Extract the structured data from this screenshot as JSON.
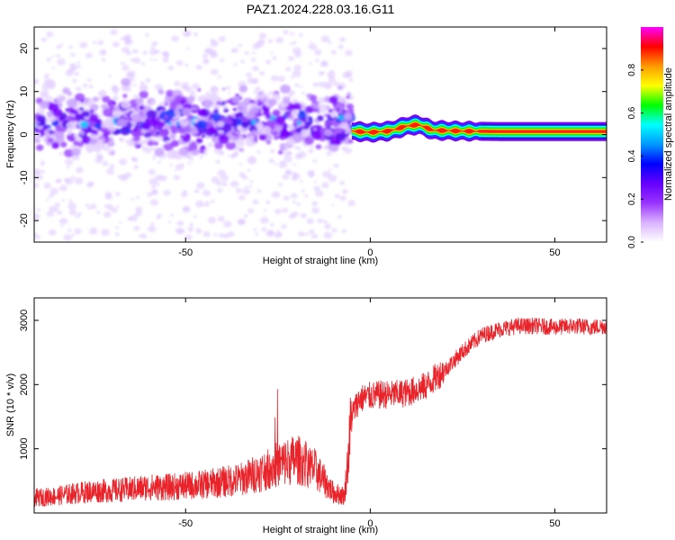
{
  "figure": {
    "title": "PAZ1.2024.228.03.16.G11"
  },
  "chart_data": [
    {
      "type": "heatmap",
      "xlabel": "Height of straight line (km)",
      "ylabel": "Frequency (Hz)",
      "xlim": [
        -91,
        64
      ],
      "ylim": [
        -25,
        25
      ],
      "xticks": [
        -50,
        0,
        50
      ],
      "yticks": [
        20,
        10,
        0,
        -10,
        -20
      ],
      "colorbar": {
        "label": "Normalized spectral amplitude",
        "range": [
          0,
          1
        ],
        "ticks": [
          "0.0",
          "0.2",
          "0.4",
          "0.6",
          "0.8"
        ],
        "colormap": [
          "#ffffff",
          "#d9b3ff",
          "#9933ff",
          "#6600ff",
          "#0000ff",
          "#0099ff",
          "#00ffff",
          "#00ff00",
          "#ffff00",
          "#ff9900",
          "#ff0000",
          "#ff00ff"
        ]
      },
      "band": {
        "x_start": -5,
        "x_end": 64,
        "center_freq": [
          {
            "x": -5,
            "y": 0.8
          },
          {
            "x": 0,
            "y": 0.5
          },
          {
            "x": 5,
            "y": 0.8
          },
          {
            "x": 10,
            "y": 2.0
          },
          {
            "x": 13,
            "y": 2.3
          },
          {
            "x": 17,
            "y": 1.0
          },
          {
            "x": 25,
            "y": 0.8
          },
          {
            "x": 35,
            "y": 0.7
          },
          {
            "x": 64,
            "y": 0.7
          }
        ]
      },
      "scatter_region": {
        "x_start": -91,
        "x_end": -5,
        "center_freq": 3,
        "spread_hz": 10
      }
    },
    {
      "type": "line",
      "xlabel": "Height of straight line (km)",
      "ylabel": "SNR (10 * v/v)",
      "xlim": [
        -91,
        64
      ],
      "ylim": [
        0,
        3350
      ],
      "xticks": [
        -50,
        0,
        50
      ],
      "yticks": [
        1000,
        2000,
        3000
      ],
      "series": [
        {
          "color": "#e8232a",
          "x": [
            -91,
            -85,
            -80,
            -75,
            -70,
            -65,
            -60,
            -55,
            -50,
            -45,
            -40,
            -35,
            -30,
            -25,
            -20,
            -15,
            -10,
            -7,
            -6,
            -5,
            -3,
            0,
            3,
            6,
            10,
            15,
            20,
            25,
            30,
            35,
            40,
            45,
            50,
            55,
            60,
            64
          ],
          "y": [
            220,
            250,
            290,
            320,
            330,
            350,
            380,
            380,
            400,
            420,
            460,
            500,
            600,
            720,
            800,
            650,
            300,
            250,
            800,
            1500,
            1750,
            1800,
            1820,
            1820,
            1850,
            1950,
            2200,
            2500,
            2750,
            2850,
            2900,
            2900,
            2880,
            2900,
            2880,
            2900
          ]
        }
      ]
    }
  ]
}
